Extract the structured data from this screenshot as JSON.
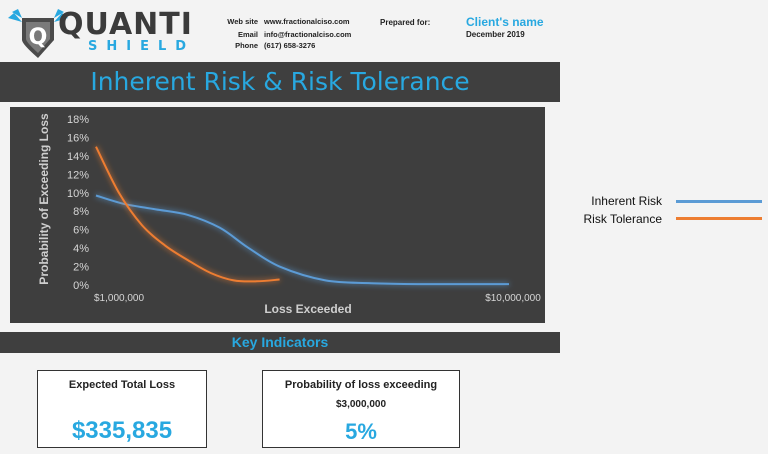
{
  "header": {
    "logo_word": "QUANTI",
    "logo_sub": "SHIELD",
    "logo_mark": "Q",
    "contact": [
      {
        "label": "Web site",
        "value": "www.fractionalciso.com"
      },
      {
        "label": "Email",
        "value": "info@fractionalciso.com"
      },
      {
        "label": "Phone",
        "value": "(617) 658-3276"
      }
    ],
    "prepared_label": "Prepared for:",
    "client_name": "Client's name",
    "report_date": "December 2019"
  },
  "page_title": "Inherent Risk & Risk Tolerance",
  "colors": {
    "accent": "#28a8e0",
    "inherent": "#5b9bd5",
    "tolerance": "#ed7d31",
    "dark_bar": "#3f3f3f"
  },
  "chart_data": {
    "type": "line",
    "xlabel": "Loss Exceeded",
    "ylabel": "Probability of Exceeding Loss",
    "x_tick_labels": [
      "$1,000,000",
      "$10,000,000"
    ],
    "y_tick_labels": [
      "0%",
      "2%",
      "4%",
      "6%",
      "8%",
      "10%",
      "12%",
      "14%",
      "16%",
      "18%"
    ],
    "ylim": [
      0,
      18
    ],
    "xlim": [
      1000000,
      10000000
    ],
    "grid": false,
    "series": [
      {
        "name": "Inherent Risk",
        "color": "#5b9bd5",
        "x": [
          1000000,
          1600000,
          2300000,
          3000000,
          3700000,
          4300000,
          5000000,
          6000000,
          7000000,
          8000000,
          10000000
        ],
        "y": [
          9.7,
          8.8,
          8.2,
          7.6,
          6.2,
          4.1,
          2.0,
          0.5,
          0.2,
          0.1,
          0.1
        ]
      },
      {
        "name": "Risk Tolerance",
        "color": "#ed7d31",
        "x": [
          1000000,
          1500000,
          2000000,
          2500000,
          3000000,
          3500000,
          4000000,
          4500000,
          5000000
        ],
        "y": [
          15.0,
          10.0,
          6.5,
          4.3,
          2.7,
          1.3,
          0.5,
          0.4,
          0.6
        ]
      }
    ]
  },
  "legend": [
    {
      "label": "Inherent Risk",
      "color": "#5b9bd5"
    },
    {
      "label": "Risk Tolerance",
      "color": "#ed7d31"
    }
  ],
  "key_indicators": {
    "title": "Key Indicators",
    "cards": [
      {
        "title": "Expected Total Loss",
        "subtitle": "",
        "value": "$335,835"
      },
      {
        "title": "Probability of loss exceeding",
        "subtitle": "$3,000,000",
        "value": "5%"
      }
    ]
  }
}
